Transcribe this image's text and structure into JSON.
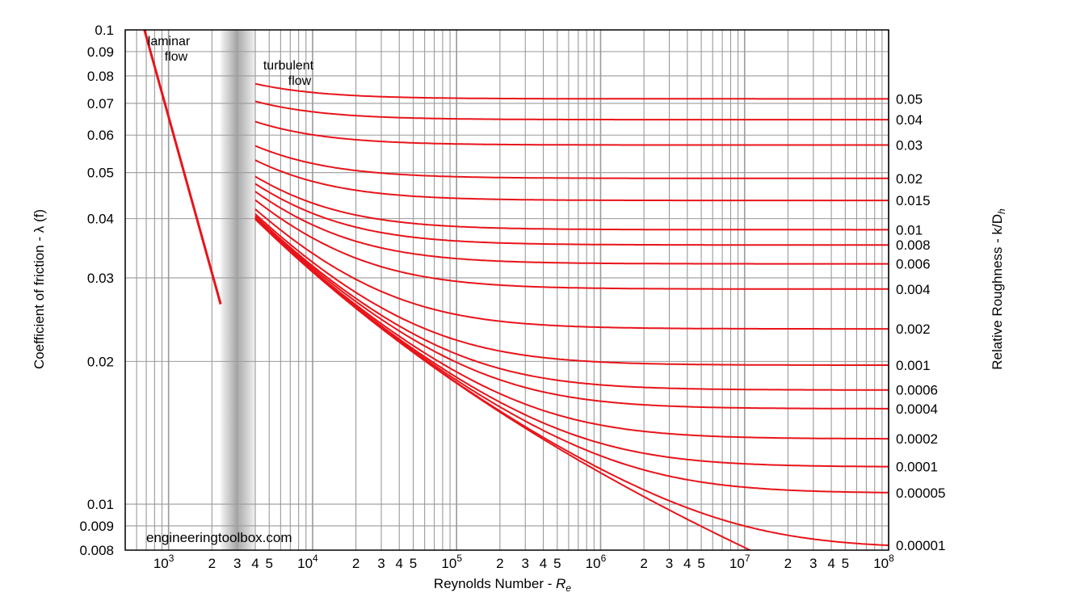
{
  "chart_data": {
    "type": "line",
    "title": "",
    "xlabel": "Reynolds Number - ",
    "xlabel_symbol": "R",
    "xlabel_subscript": "e",
    "ylabel": "Coefficient of friction - λ (f)",
    "y2label": "Relative Roughness - k/D",
    "y2label_subscript": "h",
    "xscale": "log",
    "yscale": "log",
    "xlim": [
      500,
      100000000
    ],
    "ylim": [
      0.008,
      0.1
    ],
    "grid": true,
    "x_tick_labels": [
      {
        "x": 1000,
        "base": "10",
        "exp": "3"
      },
      {
        "x": 2000,
        "text": "2"
      },
      {
        "x": 3000,
        "text": "3"
      },
      {
        "x": 4000,
        "text": "4"
      },
      {
        "x": 5000,
        "text": "5"
      },
      {
        "x": 10000,
        "base": "10",
        "exp": "4"
      },
      {
        "x": 20000,
        "text": "2"
      },
      {
        "x": 30000,
        "text": "3"
      },
      {
        "x": 40000,
        "text": "4"
      },
      {
        "x": 50000,
        "text": "5"
      },
      {
        "x": 100000,
        "base": "10",
        "exp": "5"
      },
      {
        "x": 200000,
        "text": "2"
      },
      {
        "x": 300000,
        "text": "3"
      },
      {
        "x": 400000,
        "text": "4"
      },
      {
        "x": 500000,
        "text": "5"
      },
      {
        "x": 1000000,
        "base": "10",
        "exp": "6"
      },
      {
        "x": 2000000,
        "text": "2"
      },
      {
        "x": 3000000,
        "text": "3"
      },
      {
        "x": 4000000,
        "text": "4"
      },
      {
        "x": 5000000,
        "text": "5"
      },
      {
        "x": 10000000,
        "base": "10",
        "exp": "7"
      },
      {
        "x": 20000000,
        "text": "2"
      },
      {
        "x": 30000000,
        "text": "3"
      },
      {
        "x": 40000000,
        "text": "4"
      },
      {
        "x": 50000000,
        "text": "5"
      },
      {
        "x": 100000000,
        "base": "10",
        "exp": "8"
      }
    ],
    "y_tick_labels": [
      {
        "y": 0.1,
        "text": "0.1"
      },
      {
        "y": 0.09,
        "text": "0.09"
      },
      {
        "y": 0.08,
        "text": "0.08"
      },
      {
        "y": 0.07,
        "text": "0.07"
      },
      {
        "y": 0.06,
        "text": "0.06"
      },
      {
        "y": 0.05,
        "text": "0.05"
      },
      {
        "y": 0.04,
        "text": "0.04"
      },
      {
        "y": 0.03,
        "text": "0.03"
      },
      {
        "y": 0.02,
        "text": "0.02"
      },
      {
        "y": 0.01,
        "text": "0.01"
      },
      {
        "y": 0.009,
        "text": "0.009"
      },
      {
        "y": 0.008,
        "text": "0.008"
      }
    ],
    "transition_zone": [
      2300,
      4000
    ],
    "laminar_line": {
      "x": [
        680,
        2300
      ],
      "y": [
        0.1,
        0.0264
      ]
    },
    "roughness_series": [
      {
        "label": "0.05",
        "rr": 0.05
      },
      {
        "label": "0.04",
        "rr": 0.04
      },
      {
        "label": "0.03",
        "rr": 0.03
      },
      {
        "label": "0.02",
        "rr": 0.02
      },
      {
        "label": "0.015",
        "rr": 0.015
      },
      {
        "label": "0.01",
        "rr": 0.01
      },
      {
        "label": "0.008",
        "rr": 0.008
      },
      {
        "label": "0.006",
        "rr": 0.006
      },
      {
        "label": "0.004",
        "rr": 0.004
      },
      {
        "label": "0.002",
        "rr": 0.002
      },
      {
        "label": "0.001",
        "rr": 0.001
      },
      {
        "label": "0.0006",
        "rr": 0.0006
      },
      {
        "label": "0.0004",
        "rr": 0.0004
      },
      {
        "label": "0.0002",
        "rr": 0.0002
      },
      {
        "label": "0.0001",
        "rr": 0.0001
      },
      {
        "label": "0.00005",
        "rr": 5e-05
      },
      {
        "label": "0.00001",
        "rr": 1e-05
      }
    ],
    "smooth_series": {
      "rr": 0
    },
    "annotations": {
      "laminar_line1": "laminar",
      "laminar_line2": "flow",
      "turbulent_line1": "turbulent",
      "turbulent_line2": "flow",
      "watermark": "engineeringtoolbox.com"
    },
    "colors": {
      "curve": "#e8141a",
      "grid": "#9a9a9a",
      "axis": "#000000",
      "transition_shade": "#b8b8b8"
    }
  }
}
